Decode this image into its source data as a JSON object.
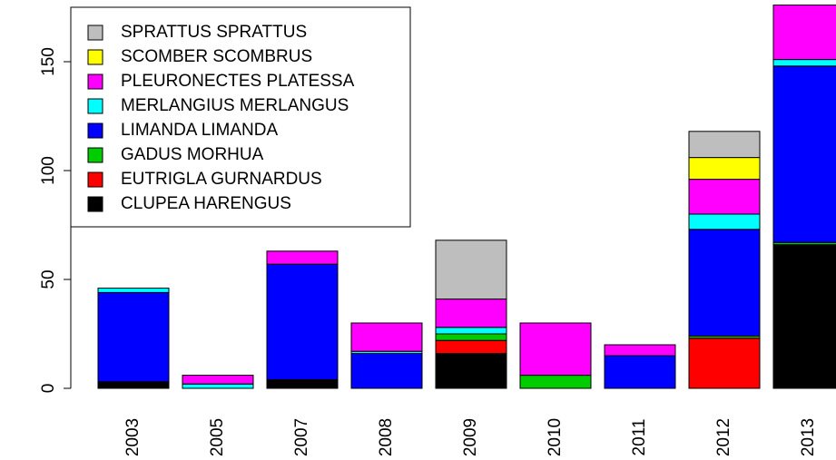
{
  "chart_data": {
    "type": "stacked_bar",
    "categories": [
      "2003",
      "2005",
      "2007",
      "2008",
      "2009",
      "2010",
      "2011",
      "2012",
      "2013"
    ],
    "series": [
      {
        "name": "CLUPEA HARENGUS",
        "color": "#000000",
        "values": [
          3,
          0,
          4,
          0,
          16,
          0,
          0,
          0,
          66
        ]
      },
      {
        "name": "EUTRIGLA GURNARDUS",
        "color": "#ff0000",
        "values": [
          0,
          0,
          0,
          0,
          6,
          0,
          0,
          23,
          0
        ]
      },
      {
        "name": "GADUS MORHUA",
        "color": "#00cd00",
        "values": [
          0,
          0,
          0,
          0,
          3,
          6,
          0,
          1,
          1
        ]
      },
      {
        "name": "LIMANDA LIMANDA",
        "color": "#0000ff",
        "values": [
          41,
          0,
          53,
          16,
          0,
          0,
          15,
          49,
          81
        ]
      },
      {
        "name": "MERLANGIUS MERLANGUS",
        "color": "#00ffff",
        "values": [
          2,
          2,
          0,
          1,
          3,
          0,
          0,
          7,
          3
        ]
      },
      {
        "name": "PLEURONECTES PLATESSA",
        "color": "#ff00ff",
        "values": [
          0,
          4,
          6,
          13,
          13,
          24,
          5,
          16,
          25
        ]
      },
      {
        "name": "SCOMBER SCOMBRUS",
        "color": "#ffff00",
        "values": [
          0,
          0,
          0,
          0,
          0,
          0,
          0,
          10,
          0
        ]
      },
      {
        "name": "SPRATTUS SPRATTUS",
        "color": "#bebebe",
        "values": [
          0,
          0,
          0,
          0,
          27,
          0,
          0,
          12,
          0
        ]
      }
    ],
    "ylim": [
      0,
      176
    ],
    "yticks": [
      0,
      50,
      100,
      150
    ],
    "legend": "top-left"
  }
}
